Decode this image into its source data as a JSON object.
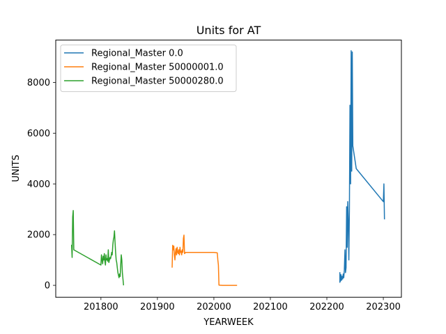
{
  "chart_data": {
    "type": "line",
    "title": "Units for AT",
    "xlabel": "YEARWEEK",
    "ylabel": "UNITS",
    "xlim": [
      201720,
      202332
    ],
    "ylim": [
      -470,
      9670
    ],
    "xticks": [
      201800,
      201900,
      202000,
      202100,
      202200,
      202300
    ],
    "yticks": [
      0,
      2000,
      4000,
      6000,
      8000
    ],
    "grid": false,
    "legend_position": "top-left",
    "series": [
      {
        "name": "Regional_Master 0.0",
        "color": "#1f77b4",
        "points": [
          [
            202223,
            100
          ],
          [
            202223,
            500
          ],
          [
            202224,
            160
          ],
          [
            202225,
            420
          ],
          [
            202226,
            200
          ],
          [
            202227,
            350
          ],
          [
            202228,
            250
          ],
          [
            202229,
            450
          ],
          [
            202230,
            300
          ],
          [
            202231,
            600
          ],
          [
            202232,
            1400
          ],
          [
            202233,
            500
          ],
          [
            202234,
            700
          ],
          [
            202235,
            3100
          ],
          [
            202236,
            1500
          ],
          [
            202237,
            3300
          ],
          [
            202238,
            2500
          ],
          [
            202239,
            1000
          ],
          [
            202240,
            3000
          ],
          [
            202241,
            7100
          ],
          [
            202242,
            4000
          ],
          [
            202243,
            9250
          ],
          [
            202244,
            4500
          ],
          [
            202245,
            9200
          ],
          [
            202246,
            5500
          ],
          [
            202252,
            4600
          ],
          [
            202300,
            3300
          ],
          [
            202301,
            4000
          ],
          [
            202302,
            2600
          ]
        ]
      },
      {
        "name": "Regional_Master 50000001.0",
        "color": "#ff7f0e",
        "points": [
          [
            201926,
            700
          ],
          [
            201927,
            1580
          ],
          [
            201928,
            1400
          ],
          [
            201929,
            1550
          ],
          [
            201930,
            1200
          ],
          [
            201931,
            1000
          ],
          [
            201932,
            1300
          ],
          [
            201933,
            1450
          ],
          [
            201934,
            1200
          ],
          [
            201935,
            1500
          ],
          [
            201936,
            1300
          ],
          [
            201937,
            1250
          ],
          [
            201938,
            1400
          ],
          [
            201939,
            1200
          ],
          [
            201940,
            1500
          ],
          [
            201941,
            1300
          ],
          [
            201942,
            1350
          ],
          [
            201943,
            1200
          ],
          [
            201944,
            1400
          ],
          [
            201945,
            1300
          ],
          [
            201946,
            1850
          ],
          [
            201947,
            1980
          ],
          [
            201948,
            1250
          ],
          [
            201950,
            1300
          ],
          [
            202000,
            1300
          ],
          [
            202006,
            1280
          ],
          [
            202007,
            1000
          ],
          [
            202008,
            800
          ],
          [
            202009,
            10
          ],
          [
            202015,
            0
          ],
          [
            202030,
            0
          ],
          [
            202041,
            0
          ]
        ]
      },
      {
        "name": "Regional_Master 50000280.0",
        "color": "#2ca02c",
        "points": [
          [
            201748,
            1600
          ],
          [
            201749,
            1100
          ],
          [
            201750,
            2700
          ],
          [
            201751,
            2950
          ],
          [
            201752,
            1400
          ],
          [
            201800,
            800
          ],
          [
            201801,
            1200
          ],
          [
            201802,
            1000
          ],
          [
            201803,
            850
          ],
          [
            201804,
            1150
          ],
          [
            201805,
            1000
          ],
          [
            201806,
            1250
          ],
          [
            201807,
            950
          ],
          [
            201808,
            800
          ],
          [
            201809,
            1200
          ],
          [
            201810,
            1000
          ],
          [
            201811,
            1050
          ],
          [
            201812,
            950
          ],
          [
            201813,
            1400
          ],
          [
            201814,
            900
          ],
          [
            201815,
            1000
          ],
          [
            201816,
            1100
          ],
          [
            201817,
            1050
          ],
          [
            201818,
            1150
          ],
          [
            201819,
            1300
          ],
          [
            201820,
            1200
          ],
          [
            201821,
            1600
          ],
          [
            201822,
            1800
          ],
          [
            201823,
            1900
          ],
          [
            201824,
            2150
          ],
          [
            201825,
            1700
          ],
          [
            201826,
            1300
          ],
          [
            201827,
            1000
          ],
          [
            201828,
            900
          ],
          [
            201829,
            700
          ],
          [
            201830,
            500
          ],
          [
            201831,
            400
          ],
          [
            201832,
            300
          ],
          [
            201833,
            450
          ],
          [
            201834,
            350
          ],
          [
            201835,
            800
          ],
          [
            201836,
            1200
          ],
          [
            201837,
            1000
          ],
          [
            201838,
            500
          ],
          [
            201840,
            0
          ]
        ]
      }
    ]
  }
}
